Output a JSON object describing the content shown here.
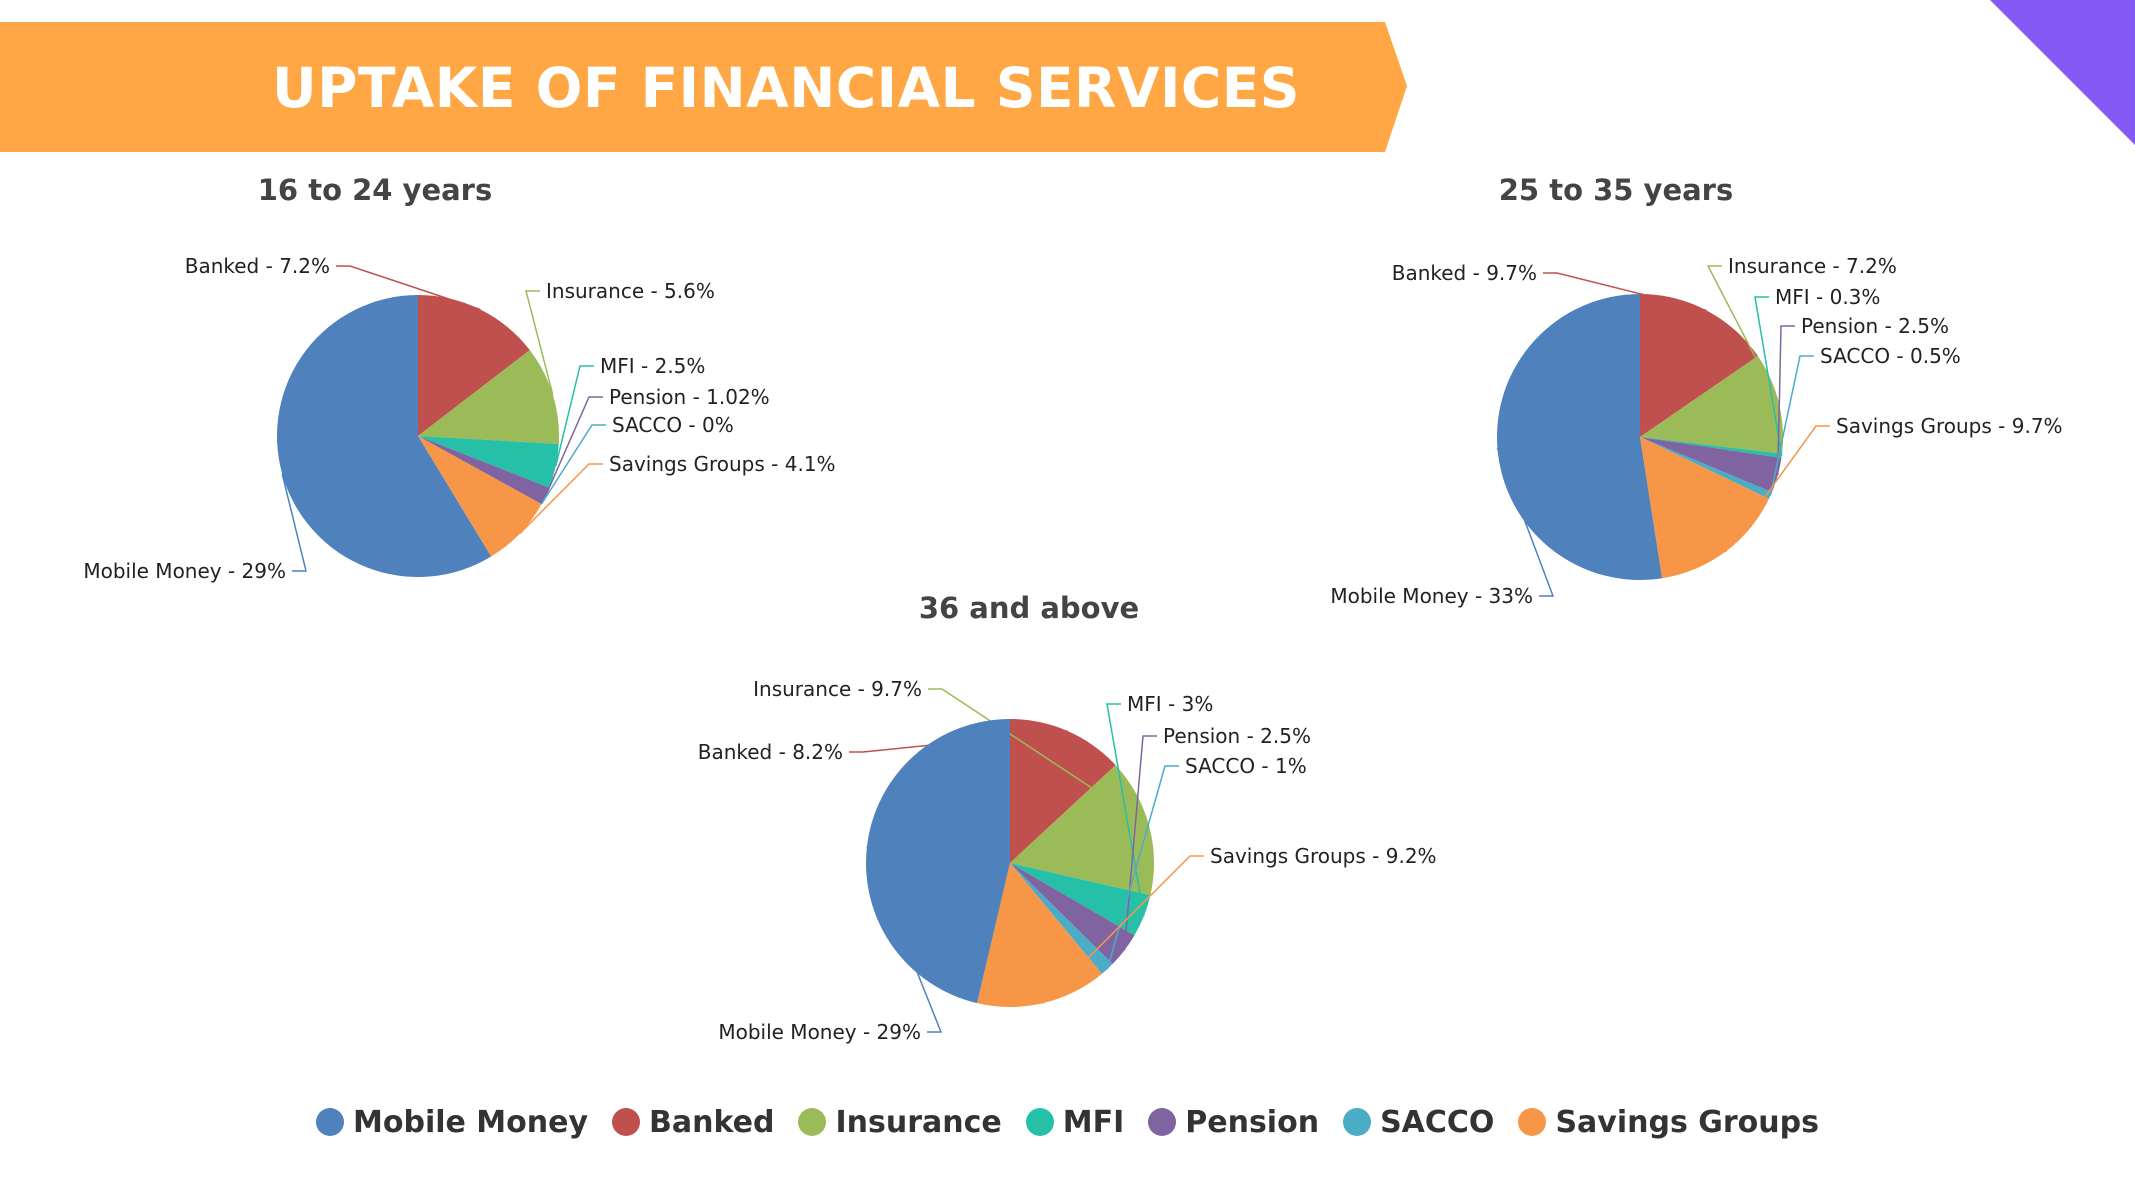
{
  "header": {
    "title": "UPTAKE OF FINANCIAL SERVICES"
  },
  "colors": {
    "banner": "#FFA645",
    "corner": "#8658F5",
    "Mobile Money": "#4F81BD",
    "Banked": "#C0504D",
    "Insurance": "#9BBB59",
    "MFI": "#26BFA8",
    "Pension": "#8064A2",
    "SACCO": "#4BACC6",
    "Savings Groups": "#F79646"
  },
  "legend": {
    "items": [
      {
        "label": "Mobile Money"
      },
      {
        "label": "Banked"
      },
      {
        "label": "Insurance"
      },
      {
        "label": "MFI"
      },
      {
        "label": "Pension"
      },
      {
        "label": "SACCO"
      },
      {
        "label": "Savings Groups"
      }
    ]
  },
  "chart_data": [
    {
      "type": "pie",
      "title": "16 to 24 years",
      "categories": [
        "Banked",
        "Insurance",
        "MFI",
        "Pension",
        "SACCO",
        "Savings Groups",
        "Mobile Money"
      ],
      "values": [
        7.2,
        5.6,
        2.5,
        1.02,
        0,
        4.1,
        29
      ],
      "labels": [
        "Banked - 7.2%",
        "Insurance - 5.6%",
        "MFI - 2.5%",
        "Pension - 1.02%",
        "SACCO - 0%",
        "Savings Groups - 4.1%",
        "Mobile Money - 29%"
      ]
    },
    {
      "type": "pie",
      "title": "25 to 35 years",
      "categories": [
        "Banked",
        "Insurance",
        "MFI",
        "Pension",
        "SACCO",
        "Savings Groups",
        "Mobile Money"
      ],
      "values": [
        9.7,
        7.2,
        0.3,
        2.5,
        0.5,
        9.7,
        33
      ],
      "labels": [
        "Banked - 9.7%",
        "Insurance - 7.2%",
        "MFI - 0.3%",
        "Pension - 2.5%",
        "SACCO - 0.5%",
        "Savings Groups - 9.7%",
        "Mobile Money - 33%"
      ]
    },
    {
      "type": "pie",
      "title": "36 and above",
      "categories": [
        "Banked",
        "Insurance",
        "MFI",
        "Pension",
        "SACCO",
        "Savings Groups",
        "Mobile Money"
      ],
      "values": [
        8.2,
        9.7,
        3,
        2.5,
        1,
        9.2,
        29
      ],
      "labels": [
        "Banked - 8.2%",
        "Insurance - 9.7%",
        "MFI - 3%",
        "Pension - 2.5%",
        "SACCO - 1%",
        "Savings Groups - 9.2%",
        "Mobile Money - 29%"
      ]
    }
  ]
}
